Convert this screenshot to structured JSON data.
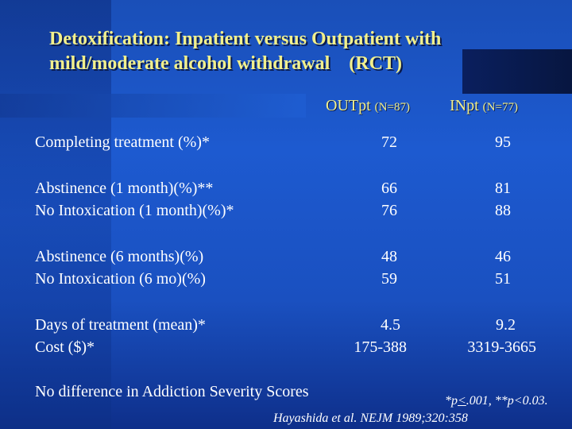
{
  "title": {
    "line1": "Detoxification: Inpatient versus Outpatient with",
    "line2": "mild/moderate alcohol withdrawal    (RCT)"
  },
  "columns": {
    "outpatient": {
      "label": "OUTpt",
      "n": "(N=87)"
    },
    "inpatient": {
      "label": "INpt",
      "n": "(N=77)"
    }
  },
  "rows": [
    {
      "label": "Completing treatment (%)*",
      "out": "72",
      "in": "95"
    },
    {
      "label": "Abstinence (1 month)(%)**",
      "out": "66",
      "in": "81"
    },
    {
      "label": "No Intoxication (1 month)(%)*",
      "out": "76",
      "in": "88"
    },
    {
      "label": "Abstinence (6 months)(%)",
      "out": "48",
      "in": "46"
    },
    {
      "label": "No Intoxication (6 mo)(%)",
      "out": "59",
      "in": "51"
    },
    {
      "label": "Days of treatment (mean)*",
      "out": "4.5",
      "in": "9.2"
    },
    {
      "label": "Cost ($)*",
      "out": "175-388",
      "in": "3319-3665"
    }
  ],
  "footer": {
    "note": "No difference in Addiction Severity Scores",
    "significance_prefix": "*p",
    "significance_le": "<",
    "significance_rest": ".001, **p<0.03.",
    "citation": "Hayashida et al. NEJM 1989;320:358"
  },
  "colors": {
    "background": "#1d5ad0",
    "title_text": "#f2f08c",
    "body_text": "#ffffff"
  }
}
